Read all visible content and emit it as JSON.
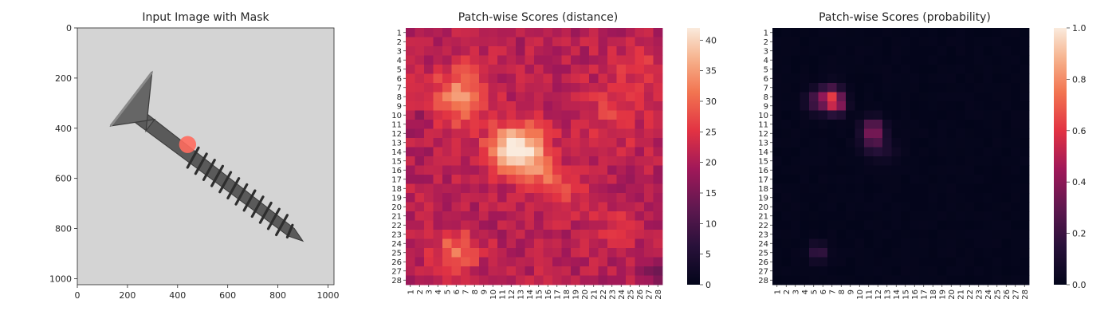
{
  "chart_data": [
    {
      "type": "image",
      "title": "Input Image with Mask",
      "xlim": [
        0,
        1024
      ],
      "ylim": [
        1024,
        0
      ],
      "xticks": [
        0,
        200,
        400,
        600,
        800,
        1000
      ],
      "yticks": [
        0,
        200,
        400,
        600,
        800,
        1000
      ],
      "mask": {
        "cx": 440,
        "cy": 465,
        "r": 34,
        "color": "#ff6b5e"
      },
      "screw": {
        "tip": [
          900,
          850
        ],
        "head_center": [
          215,
          330
        ],
        "head_top": [
          298,
          177
        ],
        "head_left": [
          133,
          391
        ]
      }
    },
    {
      "type": "heatmap",
      "title": "Patch-wise Scores (distance)",
      "rows": 28,
      "cols": 28,
      "colorbar": {
        "min": 0,
        "max": 42,
        "ticks": [
          0,
          5,
          10,
          15,
          20,
          25,
          30,
          35,
          40
        ]
      },
      "colormap": "rocket",
      "base": 21,
      "blobs": [
        {
          "r": 8,
          "c": 6.5,
          "s": 2.2,
          "a": 12
        },
        {
          "r": 13.5,
          "c": 13,
          "s": 1.8,
          "a": 20
        },
        {
          "r": 14,
          "c": 11,
          "s": 1.5,
          "a": 8
        },
        {
          "r": 16,
          "c": 15,
          "s": 1.5,
          "a": 8
        },
        {
          "r": 18,
          "c": 17.5,
          "s": 1.5,
          "a": 6
        },
        {
          "r": 25,
          "c": 6,
          "s": 1.6,
          "a": 10
        },
        {
          "r": 10,
          "c": 23,
          "s": 2.5,
          "a": 4
        },
        {
          "r": 5,
          "c": 26,
          "s": 2.0,
          "a": 4
        },
        {
          "r": 22,
          "c": 23,
          "s": 1.6,
          "a": 3
        },
        {
          "r": 27.5,
          "c": 28,
          "s": 1.2,
          "a": -6
        },
        {
          "r": 11,
          "c": 2,
          "s": 1.0,
          "a": -4
        }
      ]
    },
    {
      "type": "heatmap",
      "title": "Patch-wise Scores (probability)",
      "rows": 28,
      "cols": 28,
      "colorbar": {
        "min": 0.0,
        "max": 1.0,
        "ticks": [
          "0.0",
          "0.2",
          "0.4",
          "0.6",
          "0.8",
          "1.0"
        ]
      },
      "colormap": "rocket",
      "base": 0.0,
      "blobs": [
        {
          "r": 8,
          "c": 7,
          "s": 0.8,
          "a": 0.45
        },
        {
          "r": 9,
          "c": 7.5,
          "s": 0.7,
          "a": 0.35
        },
        {
          "r": 8.5,
          "c": 5.5,
          "s": 0.9,
          "a": 0.25
        },
        {
          "r": 11.5,
          "c": 11.5,
          "s": 0.8,
          "a": 0.35
        },
        {
          "r": 13,
          "c": 11.5,
          "s": 0.9,
          "a": 0.2
        },
        {
          "r": 25,
          "c": 5.5,
          "s": 0.7,
          "a": 0.2
        },
        {
          "r": 14,
          "c": 13,
          "s": 1.0,
          "a": 0.06
        }
      ]
    }
  ]
}
